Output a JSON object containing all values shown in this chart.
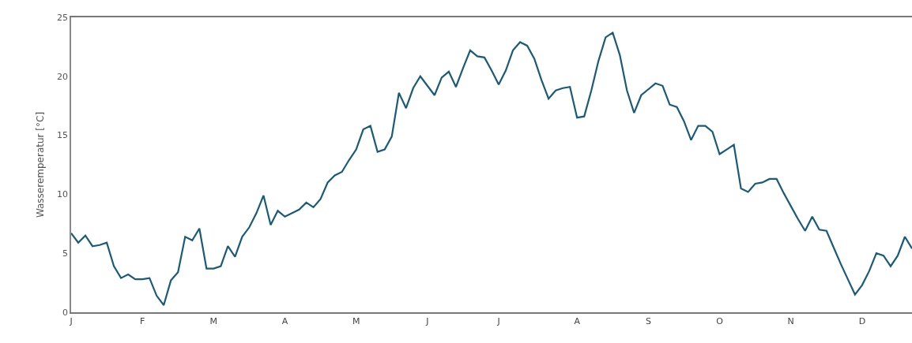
{
  "chart_data": {
    "type": "line",
    "ylabel": "Wasseremperatur [°C]",
    "ylim": [
      0,
      25
    ],
    "yticks": [
      0,
      5,
      10,
      15,
      20,
      25
    ],
    "grid": false,
    "marker": "none",
    "line_style": "solid",
    "categories": [
      "J",
      null,
      null,
      null,
      null,
      null,
      null,
      null,
      null,
      null,
      "F",
      null,
      null,
      null,
      null,
      null,
      null,
      null,
      null,
      null,
      "M",
      null,
      null,
      null,
      null,
      null,
      null,
      null,
      null,
      null,
      "A",
      null,
      null,
      null,
      null,
      null,
      null,
      null,
      null,
      null,
      "M",
      null,
      null,
      null,
      null,
      null,
      null,
      null,
      null,
      null,
      "J",
      null,
      null,
      null,
      null,
      null,
      null,
      null,
      null,
      null,
      "J",
      null,
      null,
      null,
      null,
      null,
      null,
      null,
      null,
      null,
      null,
      "A",
      null,
      null,
      null,
      null,
      null,
      null,
      null,
      null,
      null,
      "S",
      null,
      null,
      null,
      null,
      null,
      null,
      null,
      null,
      null,
      "O",
      null,
      null,
      null,
      null,
      null,
      null,
      null,
      null,
      null,
      "N",
      null,
      null,
      null,
      null,
      null,
      null,
      null,
      null,
      null,
      "D",
      null,
      null,
      null,
      null,
      null,
      null,
      null
    ],
    "series": [
      {
        "color": "#1a5b7a",
        "values": [
          6.7,
          5.9,
          6.5,
          5.6,
          5.7,
          5.9,
          3.9,
          2.9,
          3.2,
          2.8,
          2.8,
          2.9,
          1.4,
          0.6,
          2.7,
          3.4,
          6.4,
          6.1,
          7.1,
          3.7,
          3.7,
          3.9,
          5.6,
          4.7,
          6.4,
          7.2,
          8.4,
          9.9,
          7.4,
          8.6,
          8.1,
          8.4,
          8.7,
          9.3,
          8.9,
          9.6,
          11.0,
          11.6,
          11.9,
          12.9,
          13.8,
          15.5,
          15.8,
          13.6,
          13.8,
          14.9,
          18.6,
          17.3,
          19.0,
          20.0,
          19.2,
          18.4,
          19.9,
          20.4,
          19.1,
          20.7,
          22.2,
          21.7,
          21.6,
          20.5,
          19.3,
          20.5,
          22.2,
          22.9,
          22.6,
          21.5,
          19.7,
          18.1,
          18.8,
          19.0,
          19.1,
          16.5,
          16.6,
          18.8,
          21.3,
          23.3,
          23.7,
          21.8,
          18.8,
          16.9,
          18.4,
          18.9,
          19.4,
          19.2,
          17.6,
          17.4,
          16.2,
          14.6,
          15.8,
          15.8,
          15.3,
          13.4,
          13.8,
          14.2,
          10.5,
          10.2,
          10.9,
          11.0,
          11.3,
          11.3,
          10.1,
          9.0,
          7.9,
          6.9,
          8.1,
          7.0,
          6.9,
          5.5,
          4.1,
          2.8,
          1.5,
          2.3,
          3.5,
          5.0,
          4.8,
          3.9,
          4.8,
          6.4,
          5.4
        ]
      }
    ]
  }
}
